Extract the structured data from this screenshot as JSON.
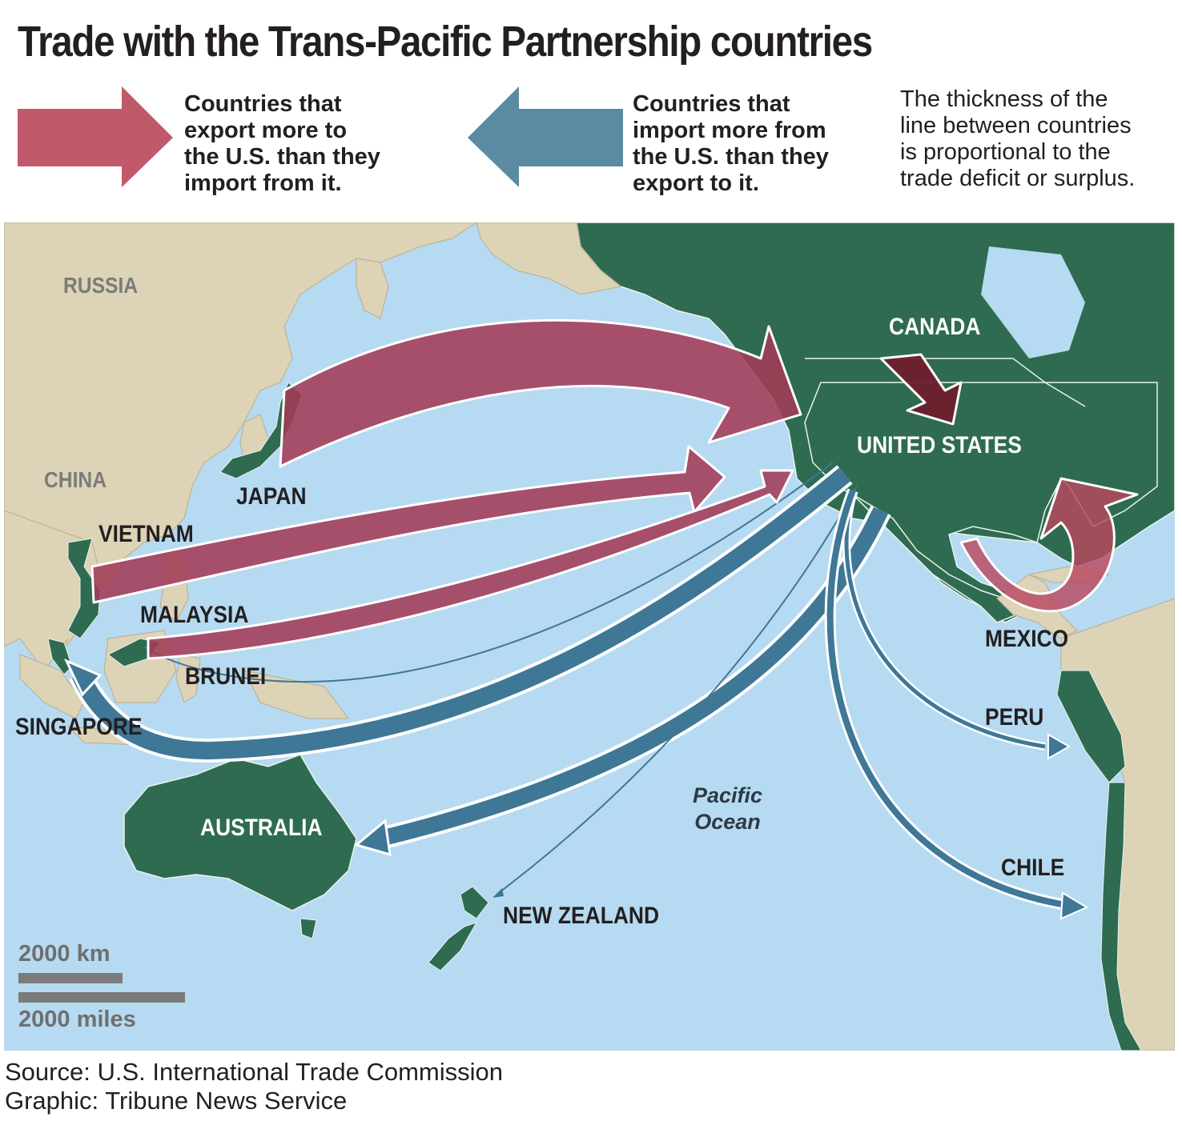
{
  "title": "Trade with the Trans-Pacific Partnership countries",
  "legend": {
    "export_text": "Countries that\nexport more to\nthe U.S. than they\nimport from it.",
    "import_text": "Countries that\nimport more from\nthe U.S. than they\nexport to it.",
    "note": "The thickness of the\nline between countries\nis proportional to the\ntrade deficit or surplus.",
    "export_color": "#c05a6a",
    "import_color": "#5b8aa3"
  },
  "map": {
    "ocean_color": "#b6daf1",
    "tpp_land_color": "#2e6b50",
    "other_land_color": "#ddd3b6",
    "labels": {
      "russia": "RUSSIA",
      "china": "CHINA",
      "canada": "CANADA",
      "united_states": "UNITED STATES",
      "japan": "JAPAN",
      "vietnam": "VIETNAM",
      "malaysia": "MALAYSIA",
      "brunei": "BRUNEI",
      "singapore": "SINGAPORE",
      "mexico": "MEXICO",
      "peru": "PERU",
      "chile": "CHILE",
      "australia": "AUSTRALIA",
      "new_zealand": "NEW ZEALAND"
    },
    "ocean_label": "Pacific\nOcean",
    "scale": {
      "km": "2000 km",
      "miles": "2000 miles"
    },
    "flows": [
      {
        "country": "Japan",
        "direction": "export"
      },
      {
        "country": "Vietnam",
        "direction": "export"
      },
      {
        "country": "Malaysia",
        "direction": "export"
      },
      {
        "country": "Canada",
        "direction": "export"
      },
      {
        "country": "Mexico",
        "direction": "export"
      },
      {
        "country": "Brunei",
        "direction": "import"
      },
      {
        "country": "Singapore",
        "direction": "import"
      },
      {
        "country": "Australia",
        "direction": "import"
      },
      {
        "country": "New Zealand",
        "direction": "import"
      },
      {
        "country": "Peru",
        "direction": "import"
      },
      {
        "country": "Chile",
        "direction": "import"
      }
    ]
  },
  "source": "Source: U.S. International Trade Commission\nGraphic: Tribune News Service"
}
